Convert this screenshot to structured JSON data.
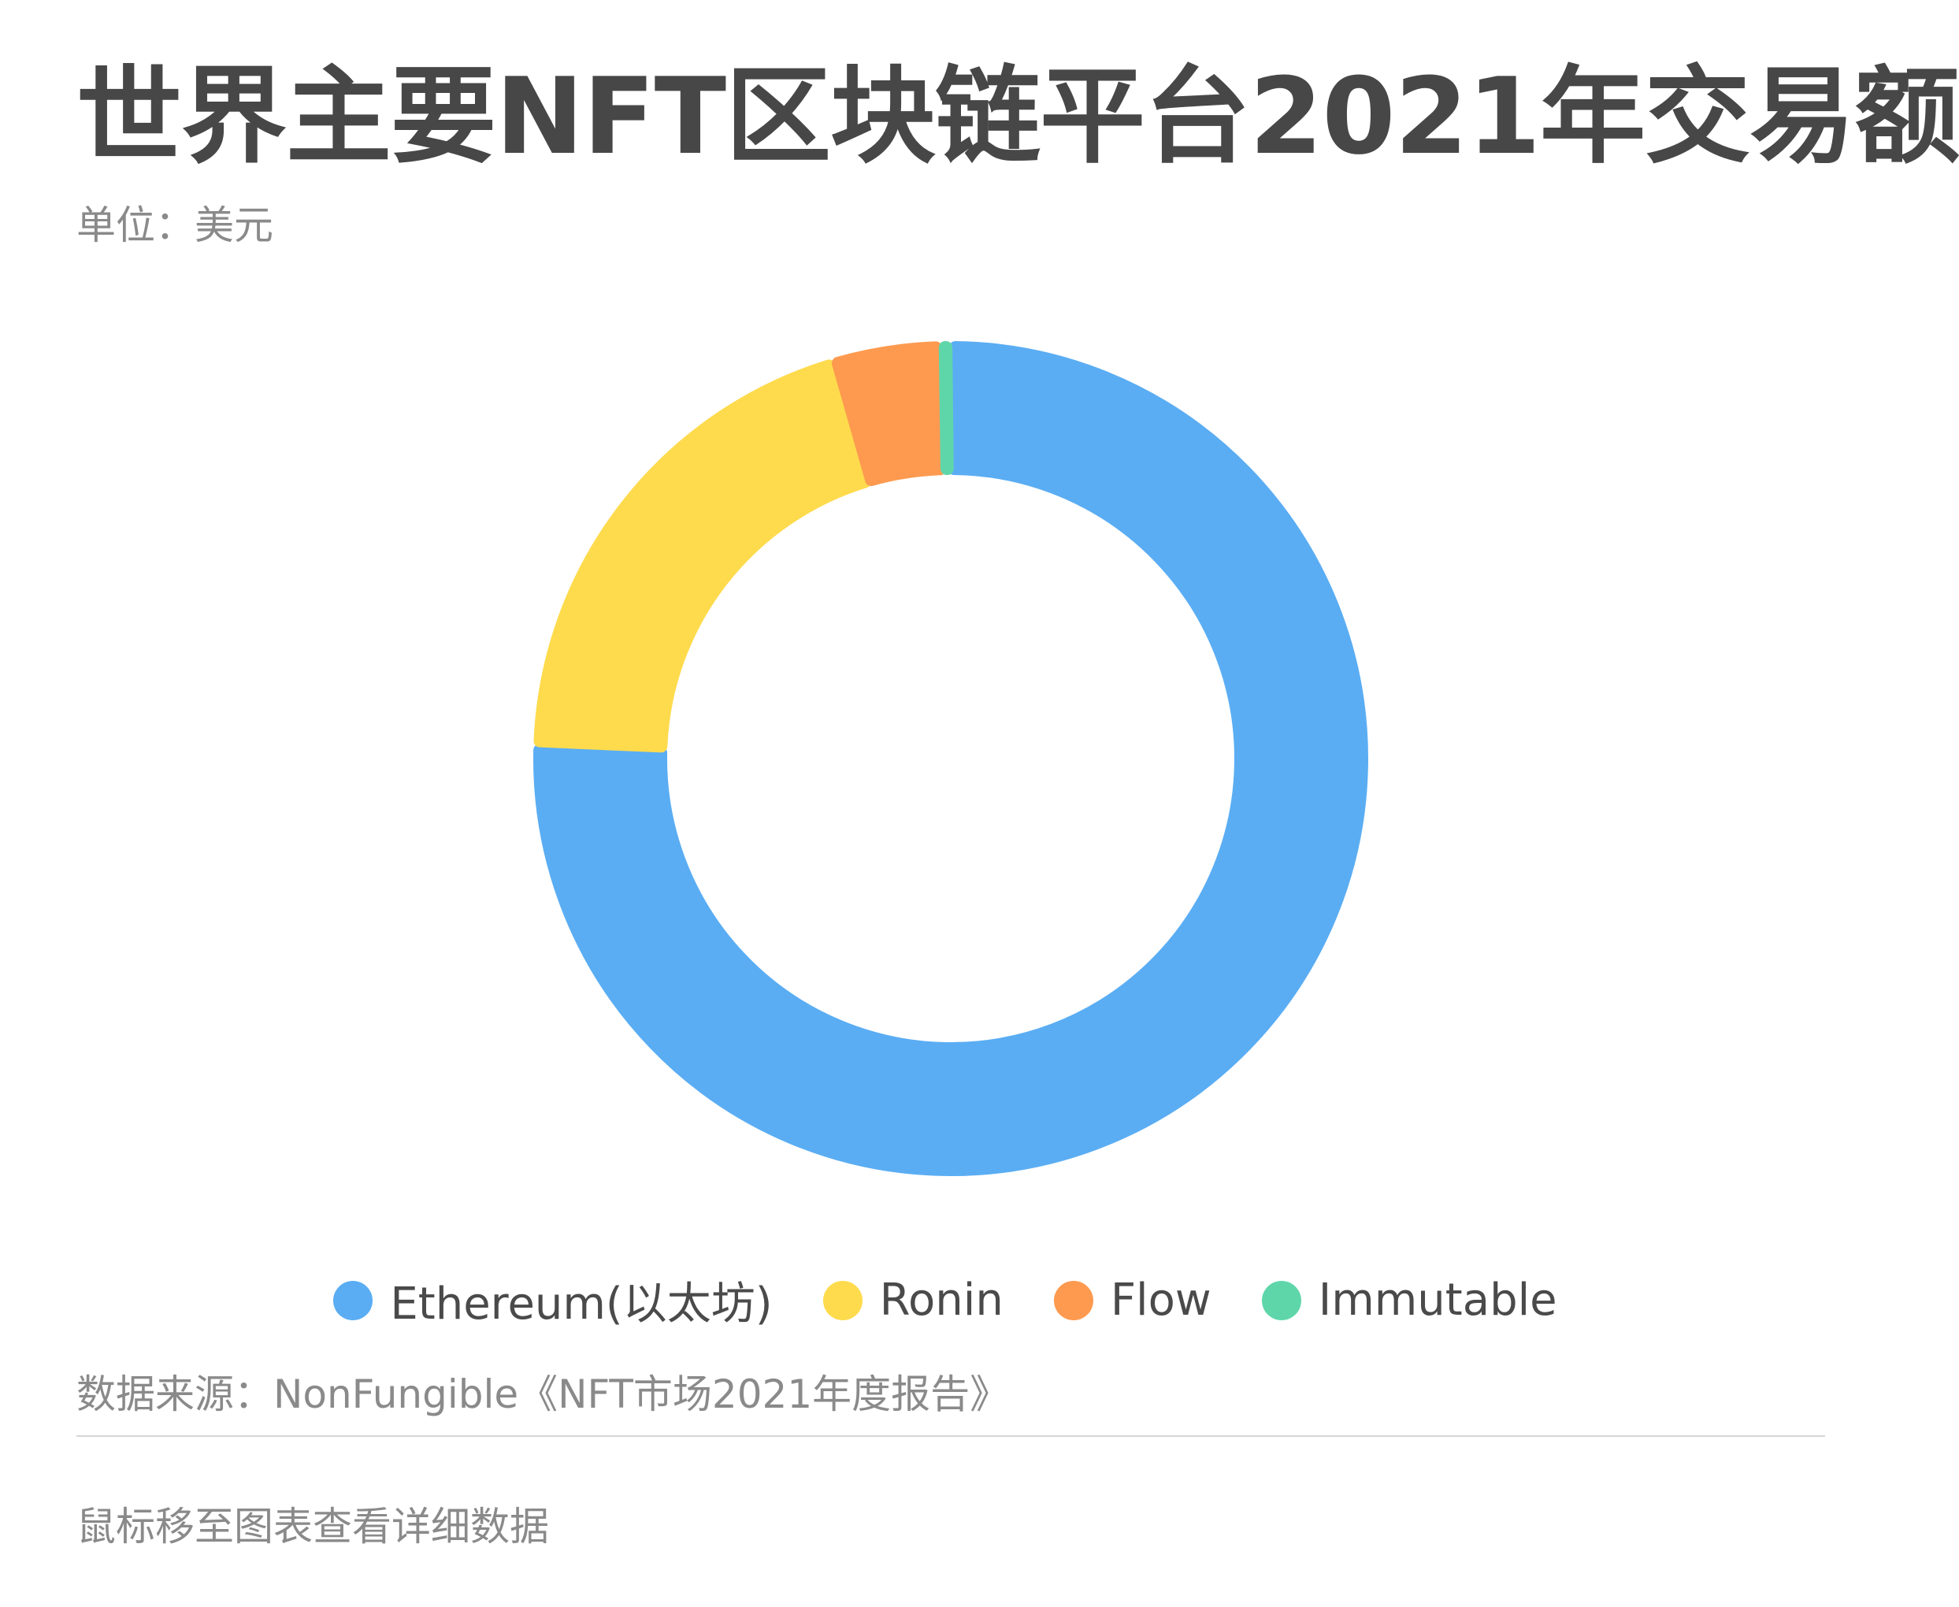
{
  "title": "世界主要NFT区块链平台2021年交易额",
  "subtitle": "单位：美元",
  "chart_data": {
    "type": "pie",
    "title": "世界主要NFT区块链平台2021年交易额",
    "unit": "美元",
    "categories": [
      "Ethereum(以太坊)",
      "Ronin",
      "Flow",
      "Immutable"
    ],
    "values": [
      75.5,
      19.9,
      4.2,
      0.4
    ],
    "colors": [
      "#5aadf3",
      "#fedb4d",
      "#fd9a4f",
      "#5fd6aa"
    ],
    "legend_position": "bottom"
  },
  "legend": [
    {
      "label": "Ethereum(以太坊)",
      "color": "#5aadf3"
    },
    {
      "label": "Ronin",
      "color": "#fedb4d"
    },
    {
      "label": "Flow",
      "color": "#fd9a4f"
    },
    {
      "label": "Immutable",
      "color": "#5fd6aa"
    }
  ],
  "source": "数据来源：NonFungible《NFT市场2021年度报告》",
  "hint": "鼠标移至图表查看详细数据"
}
